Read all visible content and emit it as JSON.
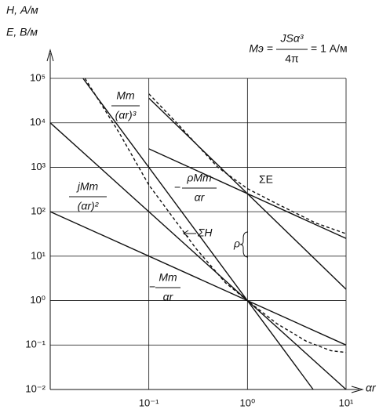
{
  "chart_data": {
    "type": "line",
    "log_x": true,
    "log_y": true,
    "grid": true,
    "color": "#111111",
    "y_label_1": "H, А/м",
    "y_label_2": "E, В/м",
    "x_label": "αr",
    "formula": {
      "left": "Mэ =",
      "numerator": "JSα³",
      "denominator": "4π",
      "right": "= 1 А/м"
    },
    "xlim": [
      0.01,
      10
    ],
    "ylim": [
      0.01,
      100000
    ],
    "xticks": [
      {
        "value": 0.1,
        "label": "10⁻¹"
      },
      {
        "value": 1,
        "label": "10⁰"
      },
      {
        "value": 10,
        "label": "10¹"
      }
    ],
    "yticks": [
      {
        "value": 0.01,
        "label": "10⁻²"
      },
      {
        "value": 0.1,
        "label": "10⁻¹"
      },
      {
        "value": 1,
        "label": "10⁰"
      },
      {
        "value": 10,
        "label": "10¹"
      },
      {
        "value": 100,
        "label": "10²"
      },
      {
        "value": 1000,
        "label": "10³"
      },
      {
        "value": 10000,
        "label": "10⁴"
      },
      {
        "value": 100000,
        "label": "10⁵"
      }
    ],
    "annotations": [
      {
        "numerator": "Mm",
        "denominator": "(αr)³"
      },
      {
        "numerator": "jMm",
        "denominator": "(αr)²"
      },
      {
        "prefix": "−",
        "numerator": "ρMm",
        "denominator": "αr"
      },
      {
        "text": "ΣE"
      },
      {
        "text": "ΣH"
      },
      {
        "text": "ρ"
      },
      {
        "prefix": "−",
        "numerator": "Mm",
        "denominator": "αr"
      }
    ],
    "series": [
      {
        "x": [
          0.0215,
          4.64
        ],
        "values": [
          100000,
          0.01
        ],
        "dash": false
      },
      {
        "x": [
          0.01,
          10
        ],
        "values": [
          10000,
          0.01
        ],
        "dash": false
      },
      {
        "x": [
          0.01,
          10
        ],
        "values": [
          100,
          0.1
        ],
        "dash": false
      },
      {
        "x": [
          0.1,
          10
        ],
        "values": [
          2600,
          25
        ],
        "dash": false
      },
      {
        "x": [
          0.1,
          10
        ],
        "values": [
          36000,
          1.8
        ],
        "dash": false
      },
      {
        "x": [
          0.1,
          0.2,
          0.5,
          1,
          2,
          5,
          10
        ],
        "values": [
          45000,
          9000,
          1000,
          330,
          150,
          55,
          32
        ],
        "dash": true
      },
      {
        "x": [
          0.0225,
          0.05,
          0.1,
          0.3,
          0.6,
          1,
          2,
          4,
          7,
          10
        ],
        "values": [
          100000,
          6000,
          400,
          15,
          2.5,
          1,
          0.3,
          0.12,
          0.075,
          0.068
        ],
        "dash": true
      }
    ]
  }
}
